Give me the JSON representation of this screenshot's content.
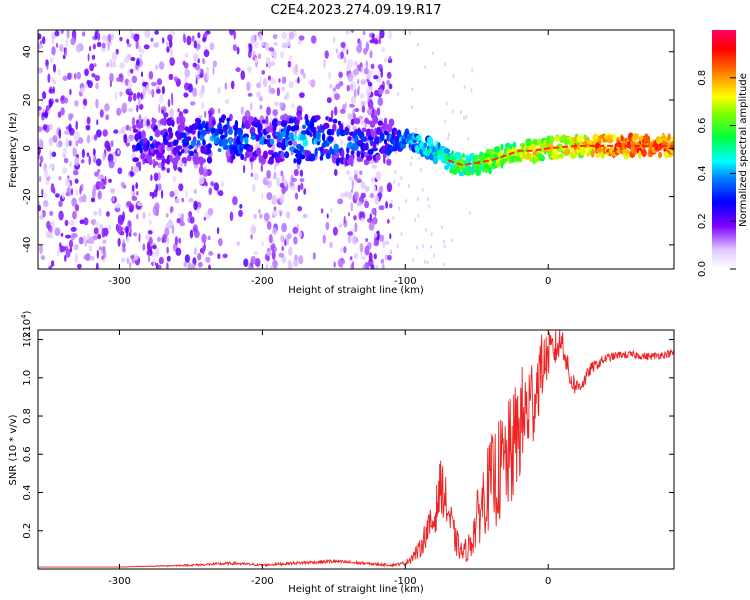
{
  "chart_data": [
    {
      "type": "heatmap",
      "title": "C2E4.2023.274.09.19.R17",
      "xlabel": "Height of straight line (km)",
      "ylabel": "Frequency (Hz)",
      "xlim": [
        -357,
        88
      ],
      "ylim": [
        -50,
        49
      ],
      "x_ticks": [
        -300,
        -200,
        -100,
        0
      ],
      "x_tick_labels": [
        "-300",
        "-200",
        "-100",
        "0"
      ],
      "y_ticks": [
        40,
        20,
        0,
        -20,
        -40
      ],
      "y_tick_labels": [
        "40",
        "20",
        "0",
        "-20",
        "-40"
      ],
      "colorbar": {
        "label": "Normalized spectral amplitude",
        "range": [
          0,
          1
        ],
        "ticks": [
          0.0,
          0.2,
          0.4,
          0.6,
          0.8
        ],
        "tick_labels": [
          "0.0",
          "0.2",
          "0.4",
          "0.6",
          "0.8"
        ],
        "colors": [
          "#ffffff",
          "#cc99ff",
          "#6600ff",
          "#0000ff",
          "#00ffff",
          "#00ff00",
          "#ffff00",
          "#ff6600",
          "#ff0000",
          "#ff0066"
        ]
      },
      "ridge": {
        "x": [
          -290,
          -260,
          -230,
          -200,
          -170,
          -140,
          -120,
          -100,
          -90,
          -80,
          -70,
          -60,
          -50,
          -40,
          -30,
          -20,
          -10,
          0,
          20,
          40,
          60,
          88
        ],
        "freq": [
          2,
          3,
          4,
          3,
          4,
          3,
          3,
          3,
          2,
          -1,
          -5,
          -7,
          -6,
          -5,
          -3,
          -1,
          -1,
          0,
          1,
          1,
          1,
          1
        ],
        "amplitude": [
          0.28,
          0.3,
          0.4,
          0.32,
          0.42,
          0.35,
          0.3,
          0.38,
          0.45,
          0.5,
          0.55,
          0.6,
          0.6,
          0.65,
          0.68,
          0.72,
          0.75,
          0.72,
          0.78,
          0.85,
          0.9,
          0.9
        ]
      },
      "noise_floor_until_x": -110
    },
    {
      "type": "line",
      "xlabel": "Height of straight line (km)",
      "ylabel": "SNR (10 * v/v)",
      "y_multiplier_label": "(x10",
      "y_multiplier_exponent": "4",
      "y_multiplier_close": ")",
      "xlim": [
        -357,
        88
      ],
      "ylim": [
        0,
        1.25
      ],
      "x_ticks": [
        -300,
        -200,
        -100,
        0
      ],
      "x_tick_labels": [
        "-300",
        "-200",
        "-100",
        "0"
      ],
      "y_ticks": [
        0.2,
        0.4,
        0.6,
        0.8,
        1.0,
        1.2
      ],
      "y_tick_labels": [
        "0.2",
        "0.4",
        "0.6",
        "0.8",
        "1.0",
        "1.2"
      ],
      "color": "#ee2222",
      "series": [
        {
          "name": "SNR",
          "x": [
            -357,
            -300,
            -250,
            -220,
            -200,
            -180,
            -150,
            -130,
            -110,
            -100,
            -90,
            -85,
            -80,
            -75,
            -70,
            -65,
            -60,
            -55,
            -50,
            -45,
            -40,
            -35,
            -30,
            -25,
            -20,
            -15,
            -10,
            -5,
            0,
            5,
            10,
            15,
            20,
            25,
            30,
            40,
            50,
            60,
            70,
            80,
            88
          ],
          "y": [
            0.01,
            0.01,
            0.02,
            0.03,
            0.02,
            0.03,
            0.04,
            0.03,
            0.02,
            0.03,
            0.1,
            0.2,
            0.25,
            0.45,
            0.3,
            0.15,
            0.08,
            0.12,
            0.25,
            0.38,
            0.45,
            0.5,
            0.55,
            0.62,
            0.75,
            0.82,
            0.9,
            1.05,
            1.12,
            1.15,
            1.2,
            1.0,
            0.95,
            0.98,
            1.05,
            1.1,
            1.12,
            1.12,
            1.11,
            1.12,
            1.13
          ],
          "jitter": [
            0,
            0,
            0.005,
            0.008,
            0.005,
            0.008,
            0.01,
            0.008,
            0.006,
            0.01,
            0.05,
            0.08,
            0.1,
            0.15,
            0.12,
            0.08,
            0.05,
            0.08,
            0.15,
            0.2,
            0.25,
            0.28,
            0.3,
            0.3,
            0.3,
            0.28,
            0.25,
            0.18,
            0.12,
            0.1,
            0.08,
            0.06,
            0.05,
            0.04,
            0.03,
            0.025,
            0.02,
            0.02,
            0.02,
            0.02,
            0.02
          ]
        }
      ]
    }
  ]
}
